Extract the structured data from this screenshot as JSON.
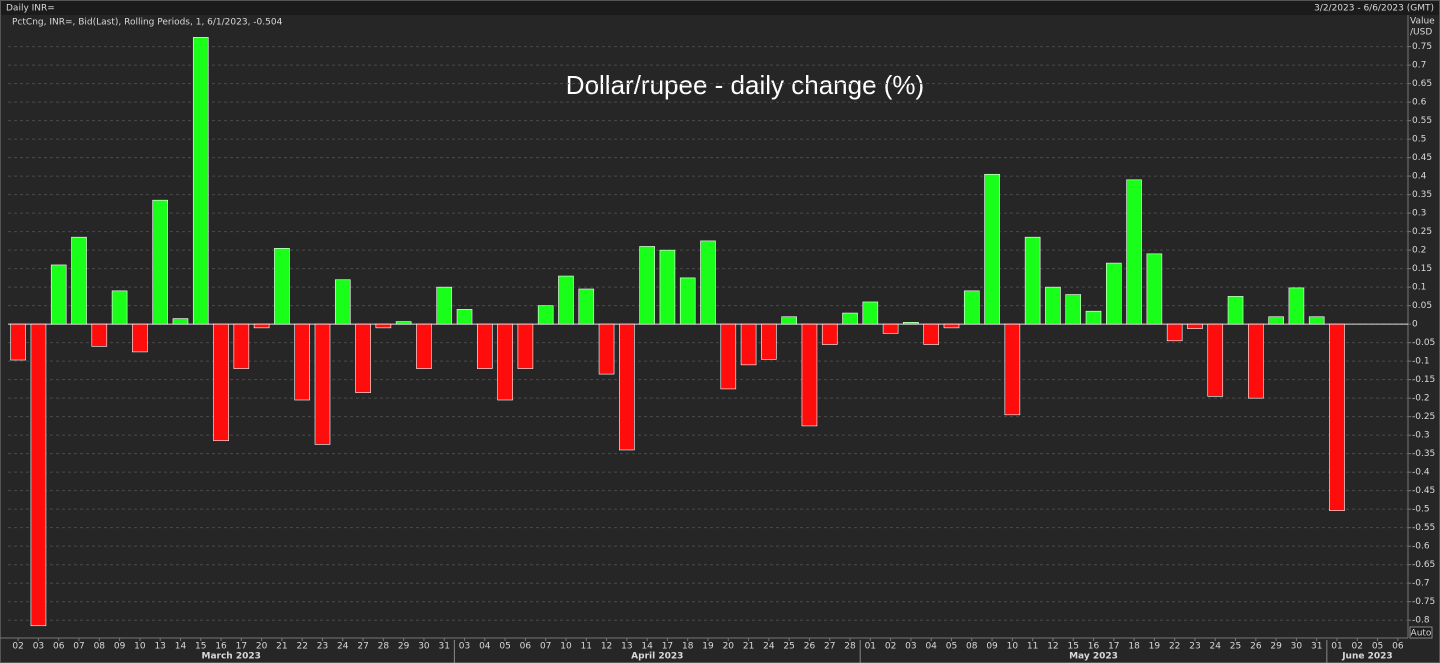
{
  "chart_data": {
    "type": "bar",
    "header": "Daily INR=",
    "date_range": "3/2/2023 - 6/6/2023 (GMT)",
    "legend_text": "PctCng, INR=, Bid(Last), Rolling Periods, 1, 6/1/2023, -0.504",
    "title": "Dollar/rupee - daily change (%)",
    "axis_title": [
      "Value",
      "/USD"
    ],
    "button": "Auto",
    "months": [
      "March 2023",
      "April 2023",
      "May 2023",
      "June 2023"
    ],
    "categories": [
      "02",
      "03",
      "06",
      "07",
      "08",
      "09",
      "10",
      "13",
      "14",
      "15",
      "16",
      "17",
      "20",
      "21",
      "22",
      "23",
      "24",
      "27",
      "28",
      "29",
      "30",
      "31",
      "03",
      "04",
      "05",
      "06",
      "07",
      "10",
      "11",
      "12",
      "13",
      "14",
      "17",
      "18",
      "19",
      "20",
      "21",
      "24",
      "25",
      "26",
      "27",
      "28",
      "01",
      "02",
      "03",
      "04",
      "05",
      "08",
      "09",
      "10",
      "11",
      "12",
      "15",
      "16",
      "17",
      "18",
      "19",
      "22",
      "23",
      "24",
      "25",
      "26",
      "29",
      "30",
      "31",
      "01",
      "02",
      "05",
      "06"
    ],
    "values": [
      -0.097,
      -0.815,
      0.16,
      0.235,
      -0.06,
      0.09,
      -0.075,
      0.335,
      0.015,
      0.775,
      -0.315,
      -0.12,
      -0.01,
      0.205,
      -0.205,
      -0.325,
      0.12,
      -0.185,
      -0.01,
      0.007,
      -0.12,
      0.1,
      0.04,
      -0.12,
      -0.205,
      -0.12,
      0.05,
      0.13,
      0.095,
      -0.135,
      -0.34,
      0.21,
      0.2,
      0.125,
      0.225,
      -0.175,
      -0.11,
      -0.095,
      0.02,
      -0.275,
      -0.055,
      0.03,
      0.06,
      -0.025,
      0.005,
      -0.055,
      -0.01,
      0.09,
      0.405,
      -0.245,
      0.235,
      0.1,
      0.08,
      0.035,
      0.165,
      0.39,
      0.19,
      -0.045,
      -0.012,
      -0.195,
      0.075,
      -0.2,
      0.02,
      0.098,
      0.02,
      -0.504,
      null,
      null,
      null
    ],
    "up_color": "#1aff1a",
    "down_color": "#ff0d0d",
    "ylim": [
      -0.84,
      0.83
    ],
    "yticks": [
      0.75,
      0.7,
      0.65,
      0.6,
      0.55,
      0.5,
      0.45,
      0.4,
      0.35,
      0.3,
      0.25,
      0.2,
      0.15,
      0.1,
      0.05,
      0,
      -0.05,
      -0.1,
      -0.15,
      -0.2,
      -0.25,
      -0.3,
      -0.35,
      -0.4,
      -0.45,
      -0.5,
      -0.55,
      -0.6,
      -0.65,
      -0.7,
      -0.75,
      -0.8
    ],
    "grid": true
  }
}
